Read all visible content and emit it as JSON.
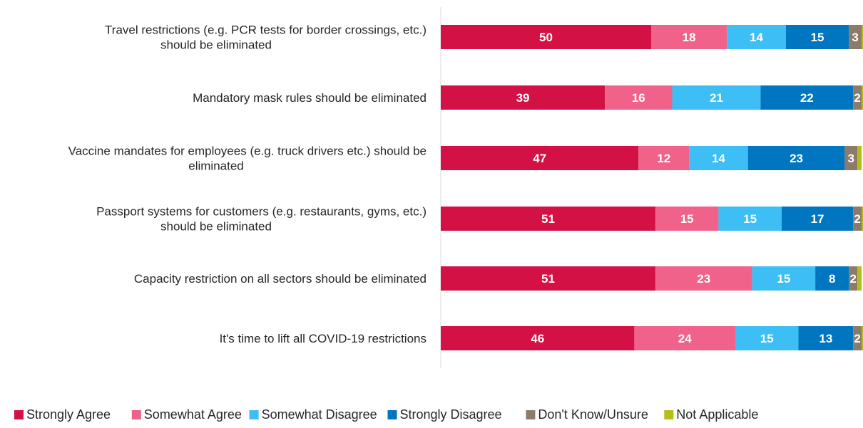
{
  "chart_data": {
    "type": "bar",
    "orientation": "horizontal",
    "stacked": true,
    "categories": [
      "Travel restrictions (e.g. PCR tests for border crossings, etc.) should be eliminated",
      "Mandatory mask rules should be eliminated",
      "Vaccine mandates for employees (e.g. truck drivers etc.) should be eliminated",
      "Passport systems for customers (e.g. restaurants, gyms, etc.) should be eliminated",
      "Capacity restriction on all sectors should be eliminated",
      "It's time to lift all COVID-19 restrictions"
    ],
    "series": [
      {
        "name": "Strongly Agree",
        "color": "#D31145",
        "values": [
          50,
          39,
          47,
          51,
          51,
          46
        ]
      },
      {
        "name": "Somewhat Agree",
        "color": "#F0628A",
        "values": [
          18,
          16,
          12,
          15,
          23,
          24
        ]
      },
      {
        "name": "Somewhat Disagree",
        "color": "#3DBEF5",
        "values": [
          14,
          21,
          14,
          15,
          15,
          15
        ]
      },
      {
        "name": "Strongly Disagree",
        "color": "#0076C0",
        "values": [
          15,
          22,
          23,
          17,
          8,
          13
        ]
      },
      {
        "name": "Don't Know/Unsure",
        "color": "#8C7B6B",
        "values": [
          3,
          2,
          3,
          2,
          2,
          2
        ]
      },
      {
        "name": "Not Applicable",
        "color": "#B5BD1C",
        "values": [
          1,
          1,
          1,
          1,
          1,
          1
        ]
      }
    ],
    "data_labels": [
      [
        "50",
        "18",
        "14",
        "15",
        "3",
        ""
      ],
      [
        "39",
        "16",
        "21",
        "22",
        "2",
        ""
      ],
      [
        "47",
        "12",
        "14",
        "23",
        "3",
        ""
      ],
      [
        "51",
        "15",
        "15",
        "17",
        "2",
        ""
      ],
      [
        "51",
        "23",
        "15",
        "8",
        "2",
        ""
      ],
      [
        "46",
        "24",
        "15",
        "13",
        "2",
        ""
      ]
    ],
    "xlim": [
      0,
      100
    ],
    "grid": false,
    "legend_position": "bottom"
  }
}
